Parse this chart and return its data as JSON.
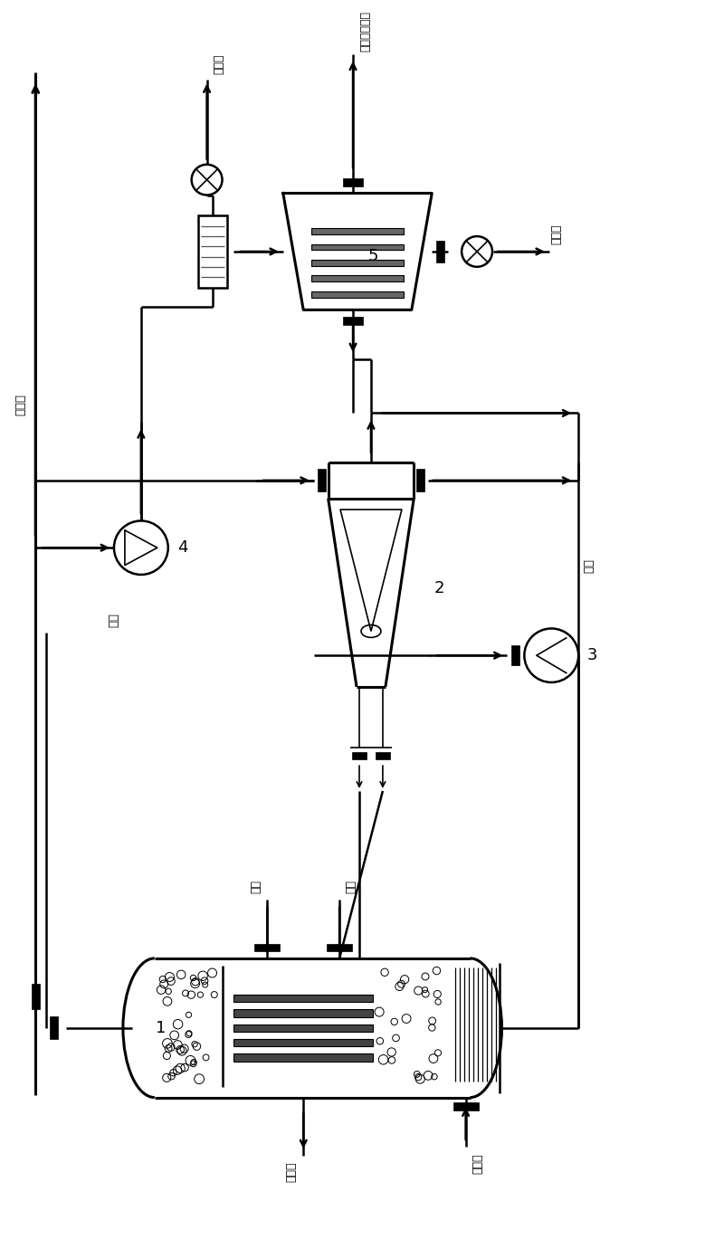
{
  "bg_color": "#ffffff",
  "line_color": "#000000",
  "fig_width": 8.0,
  "fig_height": 13.9,
  "labels": {
    "light_hydrocarbon": "轻质烃",
    "back_blow_gas": "反吹气",
    "synth_fuel": "合成液体燃料",
    "waste_catalyst": "废摔化",
    "light_liquid": "轻液",
    "heavy_liquid": "重液",
    "boiling_water": "汸水",
    "slurry": "料浆",
    "steam": "水蜒气",
    "synth_gas": "合成气",
    "label_1": "1",
    "label_2": "2",
    "label_3": "3",
    "label_4": "4",
    "label_5": "5"
  }
}
